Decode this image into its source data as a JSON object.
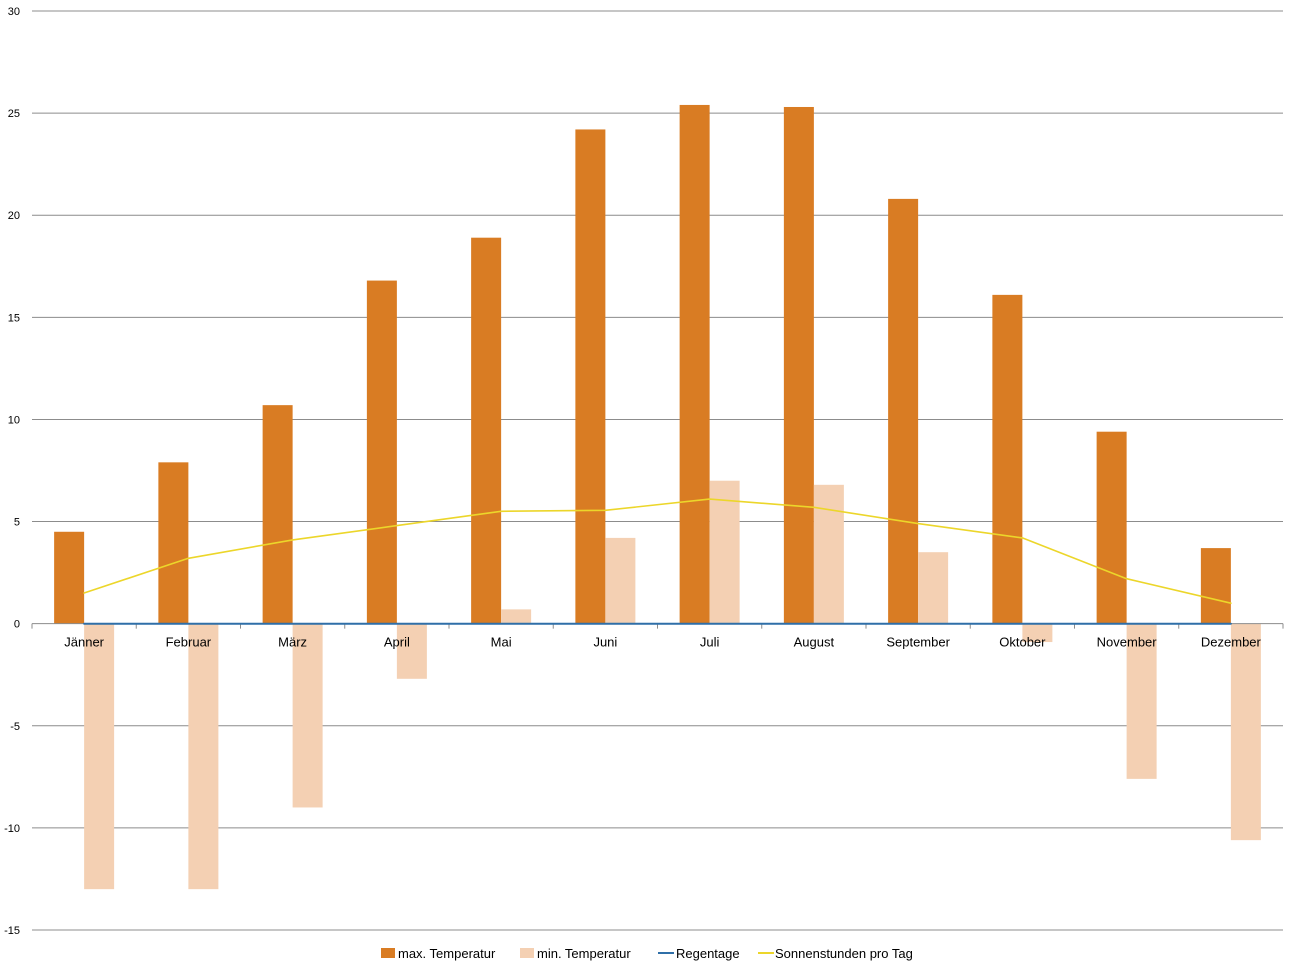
{
  "chart_data": {
    "type": "bar",
    "categories": [
      "Jänner",
      "Februar",
      "März",
      "April",
      "Mai",
      "Juni",
      "Juli",
      "August",
      "September",
      "Oktober",
      "November",
      "Dezember"
    ],
    "series": [
      {
        "name": "max. Temperatur",
        "kind": "bar",
        "color": "#d97c23",
        "values": [
          4.5,
          7.9,
          10.7,
          16.8,
          18.9,
          24.2,
          25.4,
          25.3,
          20.8,
          16.1,
          9.4,
          3.7
        ]
      },
      {
        "name": "min. Temperatur",
        "kind": "bar",
        "color": "#f4d0b3",
        "values": [
          -13.0,
          -13.0,
          -9.0,
          -2.7,
          0.7,
          4.2,
          7.0,
          6.8,
          3.5,
          -0.9,
          -7.6,
          -10.6
        ]
      },
      {
        "name": "Regentage",
        "kind": "line",
        "color": "#2f6fa8",
        "values": [
          0,
          0,
          0,
          0,
          0,
          0,
          0,
          0,
          0,
          0,
          0,
          0
        ]
      },
      {
        "name": "Sonnenstunden pro Tag",
        "kind": "line",
        "color": "#ecd62a",
        "values": [
          1.5,
          3.2,
          4.1,
          4.8,
          5.5,
          5.55,
          6.1,
          5.7,
          4.9,
          4.2,
          2.2,
          1.0
        ]
      }
    ],
    "yticks": [
      "30",
      "25",
      "20",
      "15",
      "10",
      "5",
      "0",
      "-5",
      "-10",
      "-15"
    ],
    "ylim": [
      -15,
      30
    ],
    "grid": true,
    "legend_position": "bottom"
  }
}
